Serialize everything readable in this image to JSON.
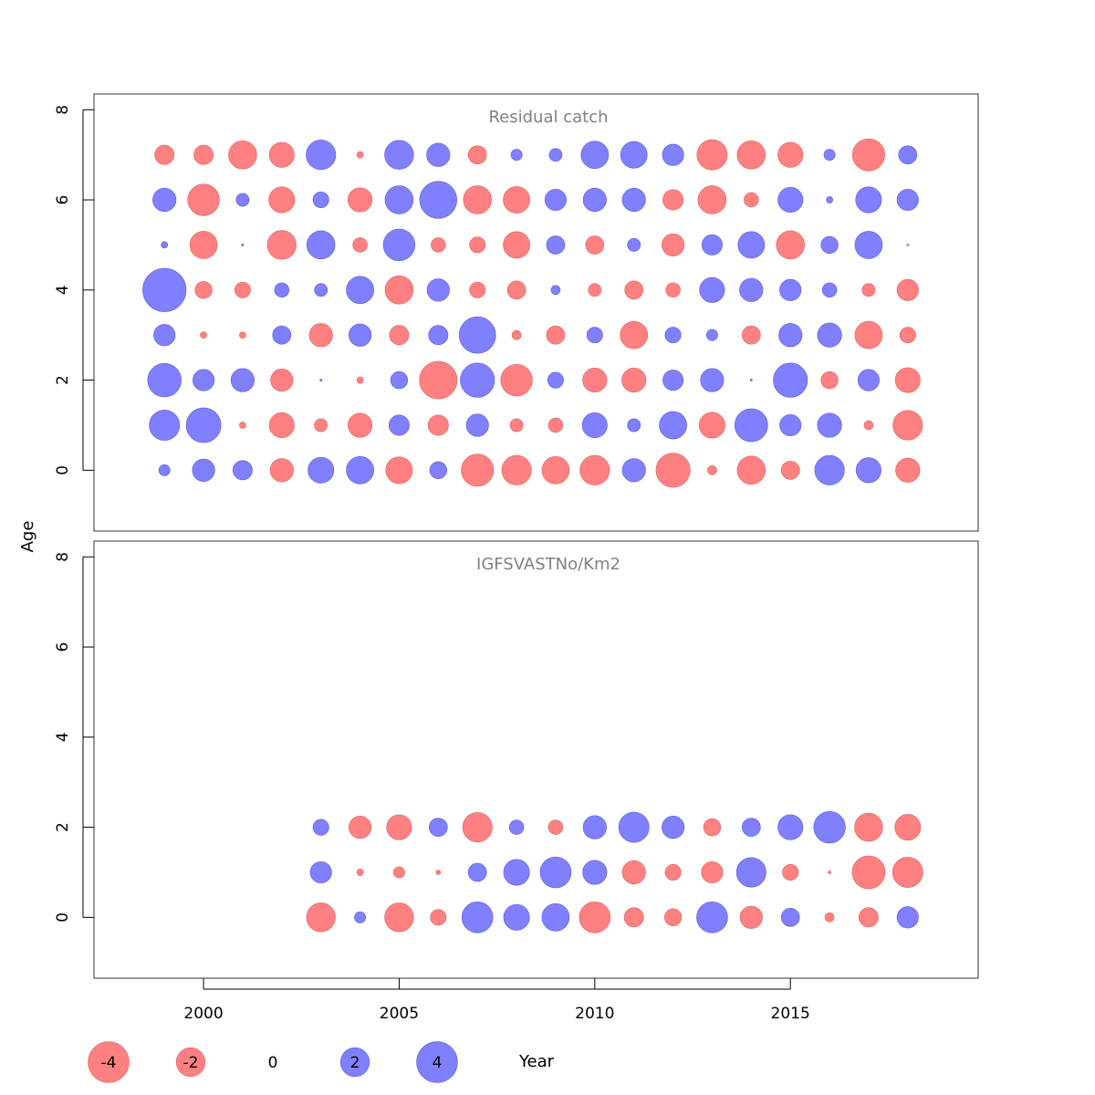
{
  "ylabel": "Age",
  "xlabel": "Year",
  "colors": {
    "negative": "#ff8080",
    "positive": "#8080ff",
    "negative_stroke": "#e06060",
    "positive_stroke": "#5a5ae0",
    "title": "#808080",
    "axis": "#000000"
  },
  "chart_data": [
    {
      "type": "scatter",
      "title": "Residual catch",
      "xlim": [
        1997.2,
        2019.8
      ],
      "ylim": [
        -1.35,
        8.35
      ],
      "x_ticks": [],
      "y_ticks": [
        "0",
        "2",
        "4",
        "6",
        "8"
      ],
      "years": [
        1999,
        2000,
        2001,
        2002,
        2003,
        2004,
        2005,
        2006,
        2007,
        2008,
        2009,
        2010,
        2011,
        2012,
        2013,
        2014,
        2015,
        2016,
        2017,
        2018
      ],
      "ages": [
        0,
        1,
        2,
        3,
        4,
        5,
        6,
        7
      ],
      "residuals": [
        [
          0.3,
          1.2,
          0.9,
          -1.3,
          1.6,
          1.8,
          -1.7,
          0.7,
          -2.5,
          -2.1,
          -1.8,
          -2.1,
          1.3,
          -2.8,
          -0.2,
          -1.9,
          -0.8,
          2.1,
          1.5,
          -1.4
        ],
        [
          2.2,
          2.9,
          -0.1,
          -1.5,
          -0.4,
          -1.4,
          1.0,
          -1.0,
          1.2,
          -0.4,
          -0.5,
          1.5,
          0.4,
          1.8,
          -1.6,
          2.6,
          1.1,
          1.4,
          -0.2,
          -2.1
        ],
        [
          2.7,
          1.1,
          1.3,
          -1.2,
          0.01,
          -0.1,
          0.7,
          -3.4,
          2.8,
          -2.4,
          0.6,
          -1.4,
          -1.4,
          1.0,
          1.3,
          0.01,
          2.8,
          -0.7,
          1.1,
          -1.5
        ],
        [
          1.1,
          -0.1,
          -0.1,
          0.8,
          -1.3,
          1.2,
          -0.9,
          0.9,
          3.2,
          -0.2,
          -0.8,
          0.6,
          -1.8,
          0.6,
          0.3,
          -0.8,
          1.3,
          1.4,
          -1.8,
          -0.6
        ],
        [
          4.5,
          -0.7,
          -0.6,
          0.5,
          0.4,
          1.8,
          -1.9,
          1.2,
          -0.6,
          -0.8,
          0.2,
          -0.4,
          -0.8,
          -0.5,
          1.5,
          1.3,
          1.1,
          0.5,
          -0.4,
          -1.1
        ],
        [
          0.1,
          -1.8,
          0.01,
          -2.0,
          1.9,
          -0.5,
          2.4,
          -0.5,
          -0.6,
          -1.7,
          0.8,
          -0.8,
          0.4,
          -1.2,
          1.0,
          1.7,
          -1.9,
          0.7,
          1.8,
          -0.01
        ],
        [
          1.3,
          -2.4,
          0.4,
          -1.6,
          0.6,
          -1.4,
          1.9,
          3.3,
          -1.9,
          -1.7,
          1.1,
          1.3,
          1.3,
          -1.0,
          -1.9,
          -0.5,
          1.5,
          0.1,
          1.6,
          1.1
        ],
        [
          -0.9,
          -0.9,
          -1.9,
          -1.5,
          2.1,
          -0.1,
          2.0,
          1.3,
          -0.8,
          0.3,
          0.4,
          1.8,
          1.7,
          1.1,
          -2.2,
          -1.9,
          -1.5,
          0.3,
          -2.5,
          0.8
        ]
      ]
    },
    {
      "type": "scatter",
      "title": "IGFSVASTNo/Km2",
      "xlim": [
        1997.2,
        2019.8
      ],
      "ylim": [
        -1.35,
        8.35
      ],
      "x_ticks": [
        "2000",
        "2005",
        "2010",
        "2015"
      ],
      "y_ticks": [
        "0",
        "2",
        "4",
        "6",
        "8"
      ],
      "years": [
        2003,
        2004,
        2005,
        2006,
        2007,
        2008,
        2009,
        2010,
        2011,
        2012,
        2013,
        2014,
        2015,
        2016,
        2017,
        2018
      ],
      "ages": [
        0,
        1,
        2
      ],
      "residuals": [
        [
          -2.0,
          0.3,
          -2.0,
          -0.6,
          2.3,
          1.6,
          1.8,
          -2.3,
          -0.9,
          -0.7,
          2.3,
          -1.2,
          0.8,
          -0.2,
          -0.9,
          1.1
        ],
        [
          1.1,
          -0.1,
          -0.3,
          -0.05,
          0.8,
          1.6,
          2.3,
          1.4,
          -1.3,
          -0.6,
          -1.1,
          2.1,
          -0.6,
          -0.02,
          -2.6,
          -2.2
        ],
        [
          0.6,
          -1.2,
          -1.5,
          0.8,
          -2.1,
          0.5,
          -0.5,
          1.3,
          2.2,
          1.2,
          -0.7,
          0.8,
          1.5,
          2.4,
          -1.9,
          -1.6
        ]
      ]
    }
  ],
  "legend": {
    "items": [
      {
        "label": "-4",
        "value": -4
      },
      {
        "label": "-2",
        "value": -2
      },
      {
        "label": "0",
        "value": 0
      },
      {
        "label": "2",
        "value": 2
      },
      {
        "label": "4",
        "value": 4
      }
    ]
  }
}
